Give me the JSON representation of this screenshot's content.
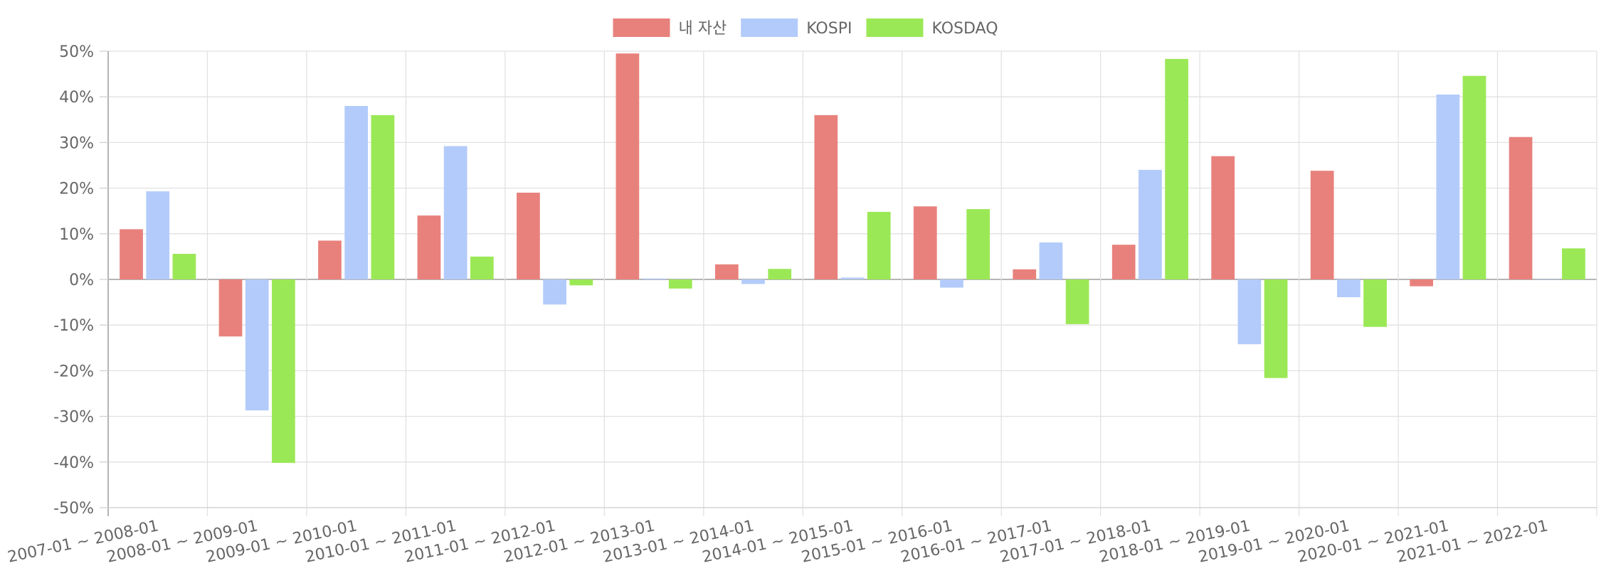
{
  "chart_data": {
    "type": "bar",
    "categories": [
      "2007-01 ~ 2008-01",
      "2008-01 ~ 2009-01",
      "2009-01 ~ 2010-01",
      "2010-01 ~ 2011-01",
      "2011-01 ~ 2012-01",
      "2012-01 ~ 2013-01",
      "2013-01 ~ 2014-01",
      "2014-01 ~ 2015-01",
      "2015-01 ~ 2016-01",
      "2016-01 ~ 2017-01",
      "2017-01 ~ 2018-01",
      "2018-01 ~ 2019-01",
      "2019-01 ~ 2020-01",
      "2020-01 ~ 2021-01",
      "2021-01 ~ 2022-01"
    ],
    "series": [
      {
        "name": "내 자산",
        "color": "#e8817c",
        "values": [
          11,
          -12.5,
          8.5,
          14,
          19,
          49.5,
          3.3,
          36,
          16,
          2.2,
          7.6,
          27,
          23.8,
          -1.5,
          31.2
        ]
      },
      {
        "name": "KOSPI",
        "color": "#b3cbfa",
        "values": [
          19.3,
          -28.7,
          38,
          29.2,
          -5.5,
          0.2,
          -1,
          0.4,
          -1.8,
          8.1,
          24,
          -14.2,
          -3.9,
          40.5,
          0
        ]
      },
      {
        "name": "KOSDAQ",
        "color": "#9be856",
        "values": [
          5.6,
          -40.2,
          36,
          5,
          -1.3,
          -2,
          2.3,
          14.8,
          15.4,
          -9.8,
          48.3,
          -21.6,
          -10.4,
          44.6,
          6.8
        ]
      }
    ],
    "ylim": [
      -50,
      50
    ],
    "ytick_step": 10,
    "ytick_suffix": "%",
    "grid": true,
    "legend_position": "top-center"
  }
}
